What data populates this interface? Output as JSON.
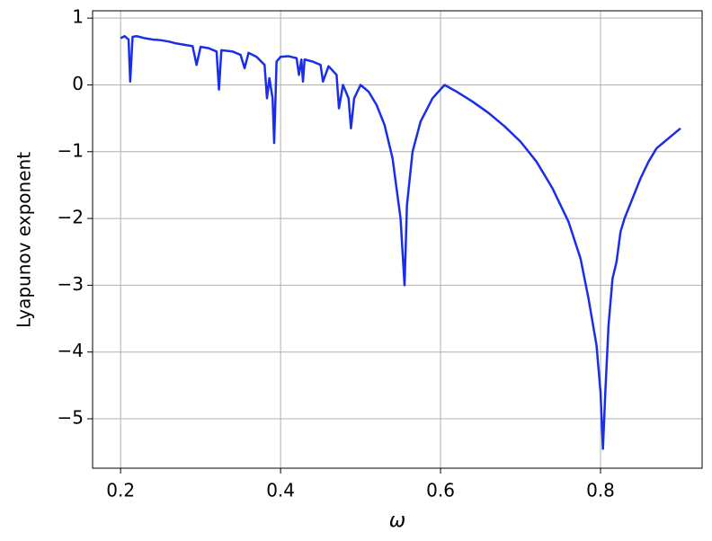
{
  "chart_data": {
    "type": "line",
    "xlabel": "ω",
    "ylabel": "Lyapunov exponent",
    "x": [
      0.2,
      0.205,
      0.21,
      0.212,
      0.215,
      0.22,
      0.23,
      0.24,
      0.25,
      0.26,
      0.27,
      0.28,
      0.29,
      0.295,
      0.3,
      0.31,
      0.32,
      0.323,
      0.326,
      0.34,
      0.35,
      0.355,
      0.36,
      0.37,
      0.38,
      0.383,
      0.386,
      0.39,
      0.392,
      0.395,
      0.4,
      0.41,
      0.42,
      0.423,
      0.426,
      0.428,
      0.43,
      0.44,
      0.45,
      0.453,
      0.46,
      0.47,
      0.473,
      0.478,
      0.485,
      0.488,
      0.492,
      0.5,
      0.51,
      0.52,
      0.53,
      0.54,
      0.55,
      0.555,
      0.558,
      0.565,
      0.575,
      0.59,
      0.605,
      0.62,
      0.64,
      0.66,
      0.68,
      0.7,
      0.72,
      0.74,
      0.76,
      0.775,
      0.785,
      0.795,
      0.8,
      0.803,
      0.806,
      0.81,
      0.815,
      0.82,
      0.825,
      0.83,
      0.84,
      0.85,
      0.86,
      0.87,
      0.88,
      0.89,
      0.9
    ],
    "series": [
      {
        "name": "Lyapunov exponent",
        "color": "#1a2ee8",
        "values": [
          0.7,
          0.73,
          0.68,
          0.05,
          0.72,
          0.73,
          0.7,
          0.68,
          0.67,
          0.65,
          0.62,
          0.6,
          0.58,
          0.3,
          0.57,
          0.55,
          0.5,
          -0.07,
          0.52,
          0.5,
          0.45,
          0.25,
          0.48,
          0.42,
          0.3,
          -0.2,
          0.1,
          -0.2,
          -0.87,
          0.35,
          0.42,
          0.43,
          0.4,
          0.15,
          0.38,
          0.05,
          0.38,
          0.35,
          0.3,
          0.05,
          0.28,
          0.15,
          -0.35,
          0.0,
          -0.2,
          -0.65,
          -0.2,
          0.0,
          -0.1,
          -0.3,
          -0.6,
          -1.1,
          -2.0,
          -3.0,
          -1.8,
          -1.0,
          -0.55,
          -0.2,
          0.0,
          -0.1,
          -0.25,
          -0.42,
          -0.62,
          -0.85,
          -1.15,
          -1.55,
          -2.05,
          -2.6,
          -3.2,
          -3.9,
          -4.6,
          -5.45,
          -4.6,
          -3.6,
          -2.9,
          -2.65,
          -2.2,
          -2.0,
          -1.7,
          -1.4,
          -1.15,
          -0.95,
          -0.85,
          -0.75,
          -0.65
        ]
      }
    ],
    "xlim": [
      0.165,
      0.927
    ],
    "ylim": [
      -5.74,
      1.11
    ],
    "xticks": [
      0.2,
      0.4,
      0.6,
      0.8
    ],
    "yticks": [
      1,
      0,
      {
        "value": -1,
        "label": "−1"
      },
      {
        "value": -2,
        "label": "−2"
      },
      {
        "value": -3,
        "label": "−3"
      },
      {
        "value": -4,
        "label": "−4"
      },
      {
        "value": -5,
        "label": "−5"
      }
    ],
    "grid": true
  }
}
